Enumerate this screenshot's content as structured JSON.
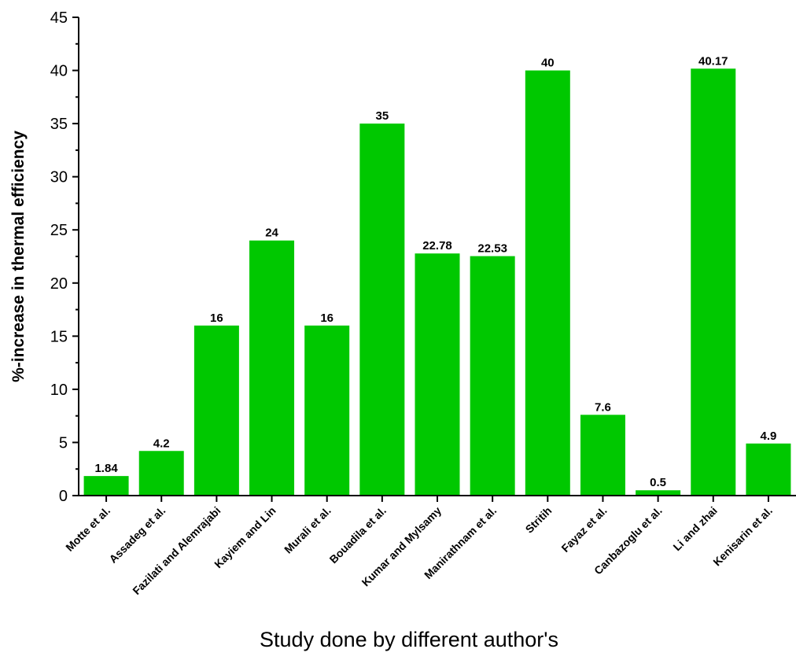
{
  "chart_data": {
    "type": "bar",
    "title": "",
    "xlabel": "Study done by different author's",
    "ylabel": "%-increase in thermal efficiency",
    "ylim": [
      0,
      45
    ],
    "yticks": [
      "0",
      "5",
      "10",
      "15",
      "20",
      "25",
      "30",
      "35",
      "40",
      "45"
    ],
    "grid": false,
    "legend": "none",
    "bar_color": "#00c800",
    "categories": [
      "Motte et al.",
      "Assadeg et al.",
      "Fazilati and Alemrajabi",
      "Kayiem and Lin",
      "Murali et al.",
      "Bouadila et al.",
      "Kumar and Mylsamy",
      "Manirathnam et al.",
      "Stritih",
      "Fayaz et al.",
      "Canbazoglu et al.",
      "Li and zhai",
      "Kenisarin et al."
    ],
    "values": [
      1.84,
      4.2,
      16,
      24,
      16,
      35,
      22.78,
      22.53,
      40,
      7.6,
      0.5,
      40.17,
      4.9
    ],
    "value_labels": [
      "1.84",
      "4.2",
      "16",
      "24",
      "16",
      "35",
      "22.78",
      "22.53",
      "40",
      "7.6",
      "0.5",
      "40.17",
      "4.9"
    ]
  }
}
